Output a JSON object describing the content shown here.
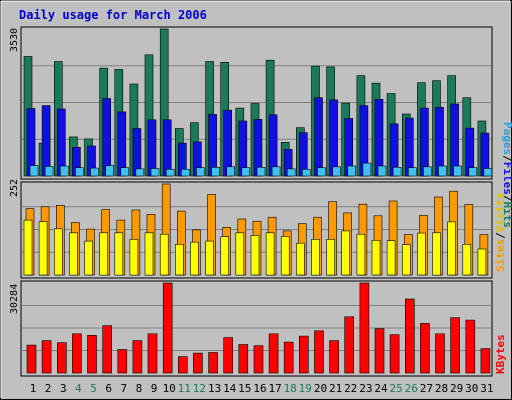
{
  "chart_data": [
    {
      "type": "bar",
      "title": "Daily usage for March 2006",
      "ymax_label": "3530",
      "right_labels": [
        "Pages",
        "/",
        "Files",
        "/",
        "Hits"
      ],
      "categories": [
        "1",
        "2",
        "3",
        "4",
        "5",
        "6",
        "7",
        "8",
        "9",
        "10",
        "11",
        "12",
        "13",
        "14",
        "15",
        "16",
        "17",
        "18",
        "19",
        "20",
        "21",
        "22",
        "23",
        "24",
        "25",
        "26",
        "27",
        "28",
        "29",
        "30",
        "31"
      ],
      "weekend_days": [
        "4",
        "5",
        "11",
        "12",
        "18",
        "19",
        "25",
        "26"
      ],
      "ylim": [
        0,
        3530
      ],
      "series": [
        {
          "name": "Hits",
          "color": "#1a7a5a",
          "values": [
            2870,
            790,
            2750,
            940,
            890,
            2590,
            2560,
            2210,
            2910,
            3530,
            1140,
            1280,
            2750,
            2730,
            1630,
            1740,
            2780,
            810,
            1160,
            2640,
            2620,
            1750,
            2410,
            2230,
            1980,
            1490,
            2240,
            2290,
            2410,
            1880,
            1320
          ]
        },
        {
          "name": "Files",
          "color": "#1010e0",
          "values": [
            1620,
            1690,
            1610,
            690,
            720,
            1860,
            1540,
            1140,
            1350,
            1350,
            790,
            820,
            1480,
            1580,
            1320,
            1360,
            1470,
            640,
            1040,
            1880,
            1830,
            1380,
            1690,
            1840,
            1250,
            1390,
            1630,
            1650,
            1730,
            1150,
            1030
          ]
        },
        {
          "name": "Pages",
          "color": "#40c0f0",
          "values": [
            250,
            230,
            240,
            200,
            190,
            250,
            200,
            170,
            180,
            160,
            160,
            200,
            210,
            220,
            200,
            210,
            220,
            170,
            160,
            200,
            220,
            240,
            310,
            240,
            210,
            200,
            220,
            240,
            240,
            200,
            180
          ]
        }
      ]
    },
    {
      "type": "bar",
      "ymax_label": "252",
      "right_labels": [
        "Sites",
        "/",
        "Visits"
      ],
      "categories": [
        "1",
        "2",
        "3",
        "4",
        "5",
        "6",
        "7",
        "8",
        "9",
        "10",
        "11",
        "12",
        "13",
        "14",
        "15",
        "16",
        "17",
        "18",
        "19",
        "20",
        "21",
        "22",
        "23",
        "24",
        "25",
        "26",
        "27",
        "28",
        "29",
        "30",
        "31"
      ],
      "ylim": [
        0,
        252
      ],
      "series": [
        {
          "name": "Visits",
          "color": "#ff9900",
          "values": [
            184,
            189,
            193,
            145,
            127,
            181,
            152,
            180,
            168,
            252,
            177,
            125,
            223,
            132,
            155,
            149,
            160,
            122,
            142,
            160,
            203,
            172,
            196,
            164,
            205,
            112,
            165,
            216,
            232,
            195,
            112
          ]
        },
        {
          "name": "Sites",
          "color": "#ffff00",
          "values": [
            152,
            148,
            128,
            117,
            94,
            117,
            117,
            99,
            117,
            113,
            85,
            91,
            94,
            106,
            117,
            110,
            117,
            107,
            88,
            99,
            99,
            122,
            113,
            96,
            95,
            84,
            116,
            117,
            147,
            85,
            72
          ]
        }
      ]
    },
    {
      "type": "bar",
      "ymax_label": "30284",
      "right_labels": [
        "KBytes"
      ],
      "categories": [
        "1",
        "2",
        "3",
        "4",
        "5",
        "6",
        "7",
        "8",
        "9",
        "10",
        "11",
        "12",
        "13",
        "14",
        "15",
        "16",
        "17",
        "18",
        "19",
        "20",
        "21",
        "22",
        "23",
        "24",
        "25",
        "26",
        "27",
        "28",
        "29",
        "30",
        "31"
      ],
      "ylim": [
        0,
        30284
      ],
      "series": [
        {
          "name": "KBytes",
          "color": "#ff0000",
          "values": [
            9400,
            10900,
            10200,
            13200,
            12700,
            15900,
            7900,
            10900,
            13200,
            30284,
            5500,
            6700,
            6900,
            11900,
            9600,
            9200,
            13200,
            10400,
            12400,
            14200,
            10900,
            18900,
            30284,
            14900,
            12900,
            24900,
            16700,
            13200,
            18600,
            17800,
            8200
          ]
        }
      ]
    }
  ]
}
